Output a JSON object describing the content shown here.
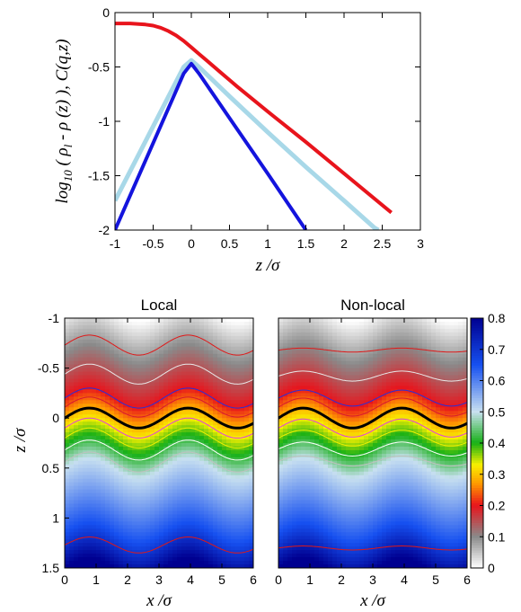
{
  "chart_data": [
    {
      "type": "line",
      "xlabel": "z /σ",
      "ylabel": "log10 ( ρl - ρ (z) ), C(q,z)",
      "ylabel_parts": {
        "main": "log",
        "sub1": "10",
        "mid": " ( ρ",
        "sub2": "l",
        "tail": " - ρ (z) ), C(q,z)"
      },
      "xlim": [
        -1,
        3
      ],
      "ylim": [
        -2,
        0
      ],
      "xticks": [
        -1,
        -0.5,
        0,
        0.5,
        1,
        1.5,
        2,
        2.5,
        3
      ],
      "xtick_labels": [
        "-1",
        "-0.5",
        "0",
        "0.5",
        "1",
        "1.5",
        "2",
        "2.5",
        "3"
      ],
      "yticks": [
        0,
        -0.5,
        -1,
        -1.5,
        -2
      ],
      "ytick_labels": [
        "0",
        "-0.5",
        "-1",
        "-1.5",
        "-2"
      ],
      "grid": false,
      "series": [
        {
          "color": "#e8141c",
          "width": 4,
          "x": [
            -1,
            -0.8,
            -0.6,
            -0.5,
            -0.4,
            -0.3,
            -0.2,
            -0.1,
            0,
            0.1,
            0.2,
            0.4,
            0.6,
            1,
            1.5,
            2,
            2.5,
            2.62
          ],
          "y": [
            -0.1,
            -0.1,
            -0.11,
            -0.12,
            -0.14,
            -0.17,
            -0.21,
            -0.26,
            -0.32,
            -0.38,
            -0.44,
            -0.56,
            -0.68,
            -0.91,
            -1.19,
            -1.48,
            -1.77,
            -1.84
          ]
        },
        {
          "color": "#a8d8e8",
          "width": 5,
          "x": [
            -1,
            -0.1,
            0,
            0.1,
            0.5,
            1,
            1.5,
            2,
            2.4,
            2.45
          ],
          "y": [
            -1.73,
            -0.5,
            -0.44,
            -0.5,
            -0.77,
            -1.1,
            -1.42,
            -1.73,
            -1.98,
            -2.0
          ]
        },
        {
          "color": "#1414dd",
          "width": 4,
          "x": [
            -1,
            -0.1,
            0,
            0.1,
            0.5,
            1,
            1.5
          ],
          "y": [
            -2.0,
            -0.56,
            -0.47,
            -0.56,
            -0.97,
            -1.48,
            -2.0
          ]
        }
      ]
    },
    {
      "type": "heatmap",
      "title": "Local",
      "xlabel": "x /σ",
      "ylabel": "z /σ",
      "xlim": [
        0,
        6
      ],
      "ylim": [
        -1,
        1.5
      ],
      "xticks": [
        0,
        1,
        2,
        3,
        4,
        5,
        6
      ],
      "xtick_labels": [
        "0",
        "1",
        "2",
        "3",
        "4",
        "5",
        "6"
      ],
      "yticks": [
        -1,
        -0.5,
        0,
        0.5,
        1,
        1.5
      ],
      "ytick_labels": [
        "-1",
        "-0.5",
        "0",
        "0.5",
        "1",
        "1.5"
      ],
      "wave_period": 3.14,
      "interface_amplitude": 0.1,
      "contours": [
        {
          "z0": -0.73,
          "amp": 0.1,
          "color": "#e01818",
          "width": 1
        },
        {
          "z0": -0.44,
          "amp": 0.1,
          "color": "#e8e8e8",
          "width": 1
        },
        {
          "z0": -0.2,
          "amp": 0.1,
          "color": "#2830d8",
          "width": 1
        },
        {
          "z0": -0.11,
          "amp": 0.1,
          "color": "#d81830",
          "width": 1
        },
        {
          "z0": 0,
          "amp": 0.1,
          "color": "#000000",
          "width": 3
        },
        {
          "z0": 0.1,
          "amp": 0.1,
          "color": "#e040e0",
          "width": 1
        },
        {
          "z0": 0.2,
          "amp": 0.1,
          "color": "#f0f000",
          "width": 1
        },
        {
          "z0": 0.32,
          "amp": 0.1,
          "color": "#ffffff",
          "width": 1
        },
        {
          "z0": 0.44,
          "amp": 0.1,
          "color": "#c0c0c0",
          "width": 1
        },
        {
          "z0": 1.27,
          "amp": 0.08,
          "color": "#e01818",
          "width": 1
        }
      ]
    },
    {
      "type": "heatmap",
      "title": "Non-local",
      "xlabel": "x /σ",
      "xlim": [
        0,
        6
      ],
      "ylim": [
        -1,
        1.5
      ],
      "xticks": [
        0,
        1,
        2,
        3,
        4,
        5,
        6
      ],
      "xtick_labels": [
        "0",
        "1",
        "2",
        "3",
        "4",
        "5",
        "6"
      ],
      "wave_period": 3.14,
      "interface_amplitude": 0.1,
      "contours": [
        {
          "z0": -0.68,
          "amp": 0.02,
          "color": "#e01818",
          "width": 1
        },
        {
          "z0": -0.42,
          "amp": 0.05,
          "color": "#e8e8e8",
          "width": 1
        },
        {
          "z0": -0.2,
          "amp": 0.08,
          "color": "#2830d8",
          "width": 1
        },
        {
          "z0": -0.11,
          "amp": 0.09,
          "color": "#d81830",
          "width": 1
        },
        {
          "z0": 0,
          "amp": 0.1,
          "color": "#000000",
          "width": 3
        },
        {
          "z0": 0.1,
          "amp": 0.09,
          "color": "#e040e0",
          "width": 1
        },
        {
          "z0": 0.2,
          "amp": 0.08,
          "color": "#f0f000",
          "width": 1
        },
        {
          "z0": 0.31,
          "amp": 0.07,
          "color": "#ffffff",
          "width": 1
        },
        {
          "z0": 0.43,
          "amp": 0.05,
          "color": "#c0c0c0",
          "width": 1
        },
        {
          "z0": 1.3,
          "amp": 0.02,
          "color": "#e01818",
          "width": 1
        }
      ]
    },
    {
      "type": "colorbar",
      "range": [
        0,
        0.8
      ],
      "ticks": [
        0,
        0.1,
        0.2,
        0.3,
        0.4,
        0.5,
        0.6,
        0.7,
        0.8
      ],
      "tick_labels": [
        "0",
        "0.1",
        "0.2",
        "0.3",
        "0.4",
        "0.5",
        "0.6",
        "0.7",
        "0.8"
      ],
      "colormap": [
        {
          "v": 0.0,
          "color": "#ffffff"
        },
        {
          "v": 0.1,
          "color": "#8a8a8a"
        },
        {
          "v": 0.2,
          "color": "#e8141c"
        },
        {
          "v": 0.27,
          "color": "#ff9a00"
        },
        {
          "v": 0.33,
          "color": "#f8f000"
        },
        {
          "v": 0.4,
          "color": "#16b016"
        },
        {
          "v": 0.5,
          "color": "#c8e0f0"
        },
        {
          "v": 0.65,
          "color": "#1650f0"
        },
        {
          "v": 0.8,
          "color": "#000090"
        }
      ]
    }
  ]
}
